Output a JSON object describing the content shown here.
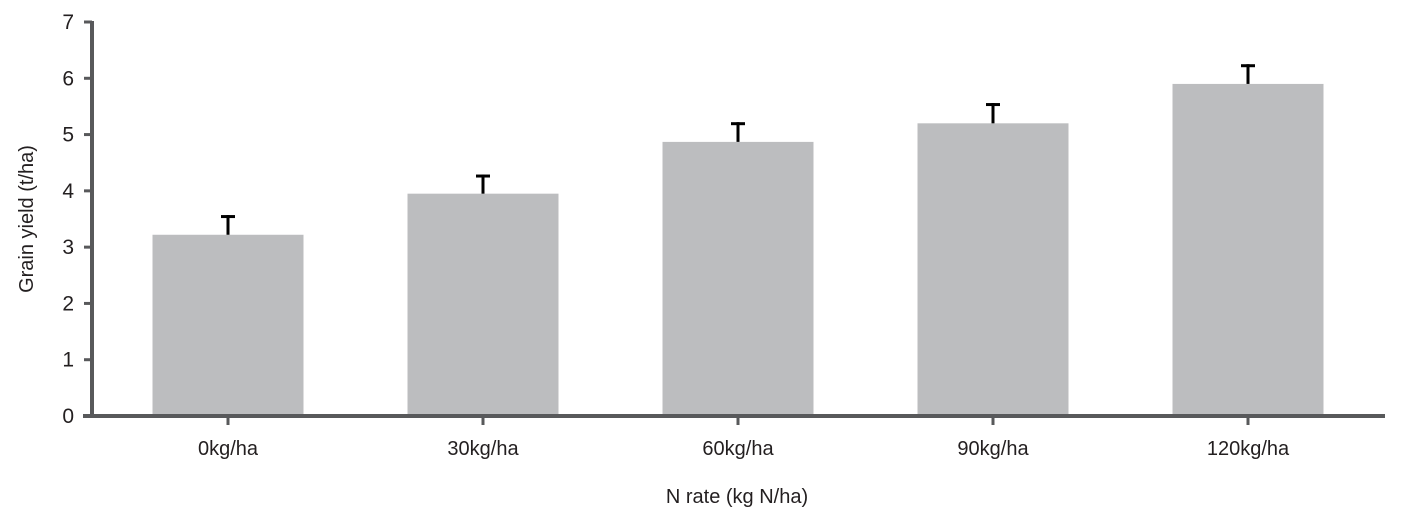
{
  "chart_data": {
    "type": "bar",
    "title": "",
    "xlabel": "N rate (kg N/ha)",
    "ylabel": "Grain yield (t/ha)",
    "ylim": [
      0,
      7
    ],
    "yticks": [
      "0",
      "1",
      "2",
      "3",
      "4",
      "5",
      "6",
      "7"
    ],
    "categories": [
      "0kg/ha",
      "30kg/ha",
      "60kg/ha",
      "90kg/ha",
      "120kg/ha"
    ],
    "values": [
      3.22,
      3.95,
      4.87,
      5.2,
      5.9
    ],
    "error_upper": [
      3.57,
      4.29,
      5.22,
      5.56,
      6.25
    ],
    "grid": false,
    "colors": {
      "bar": "#bcbdbf",
      "axis": "#58595b",
      "error_bar": "#000000"
    }
  }
}
